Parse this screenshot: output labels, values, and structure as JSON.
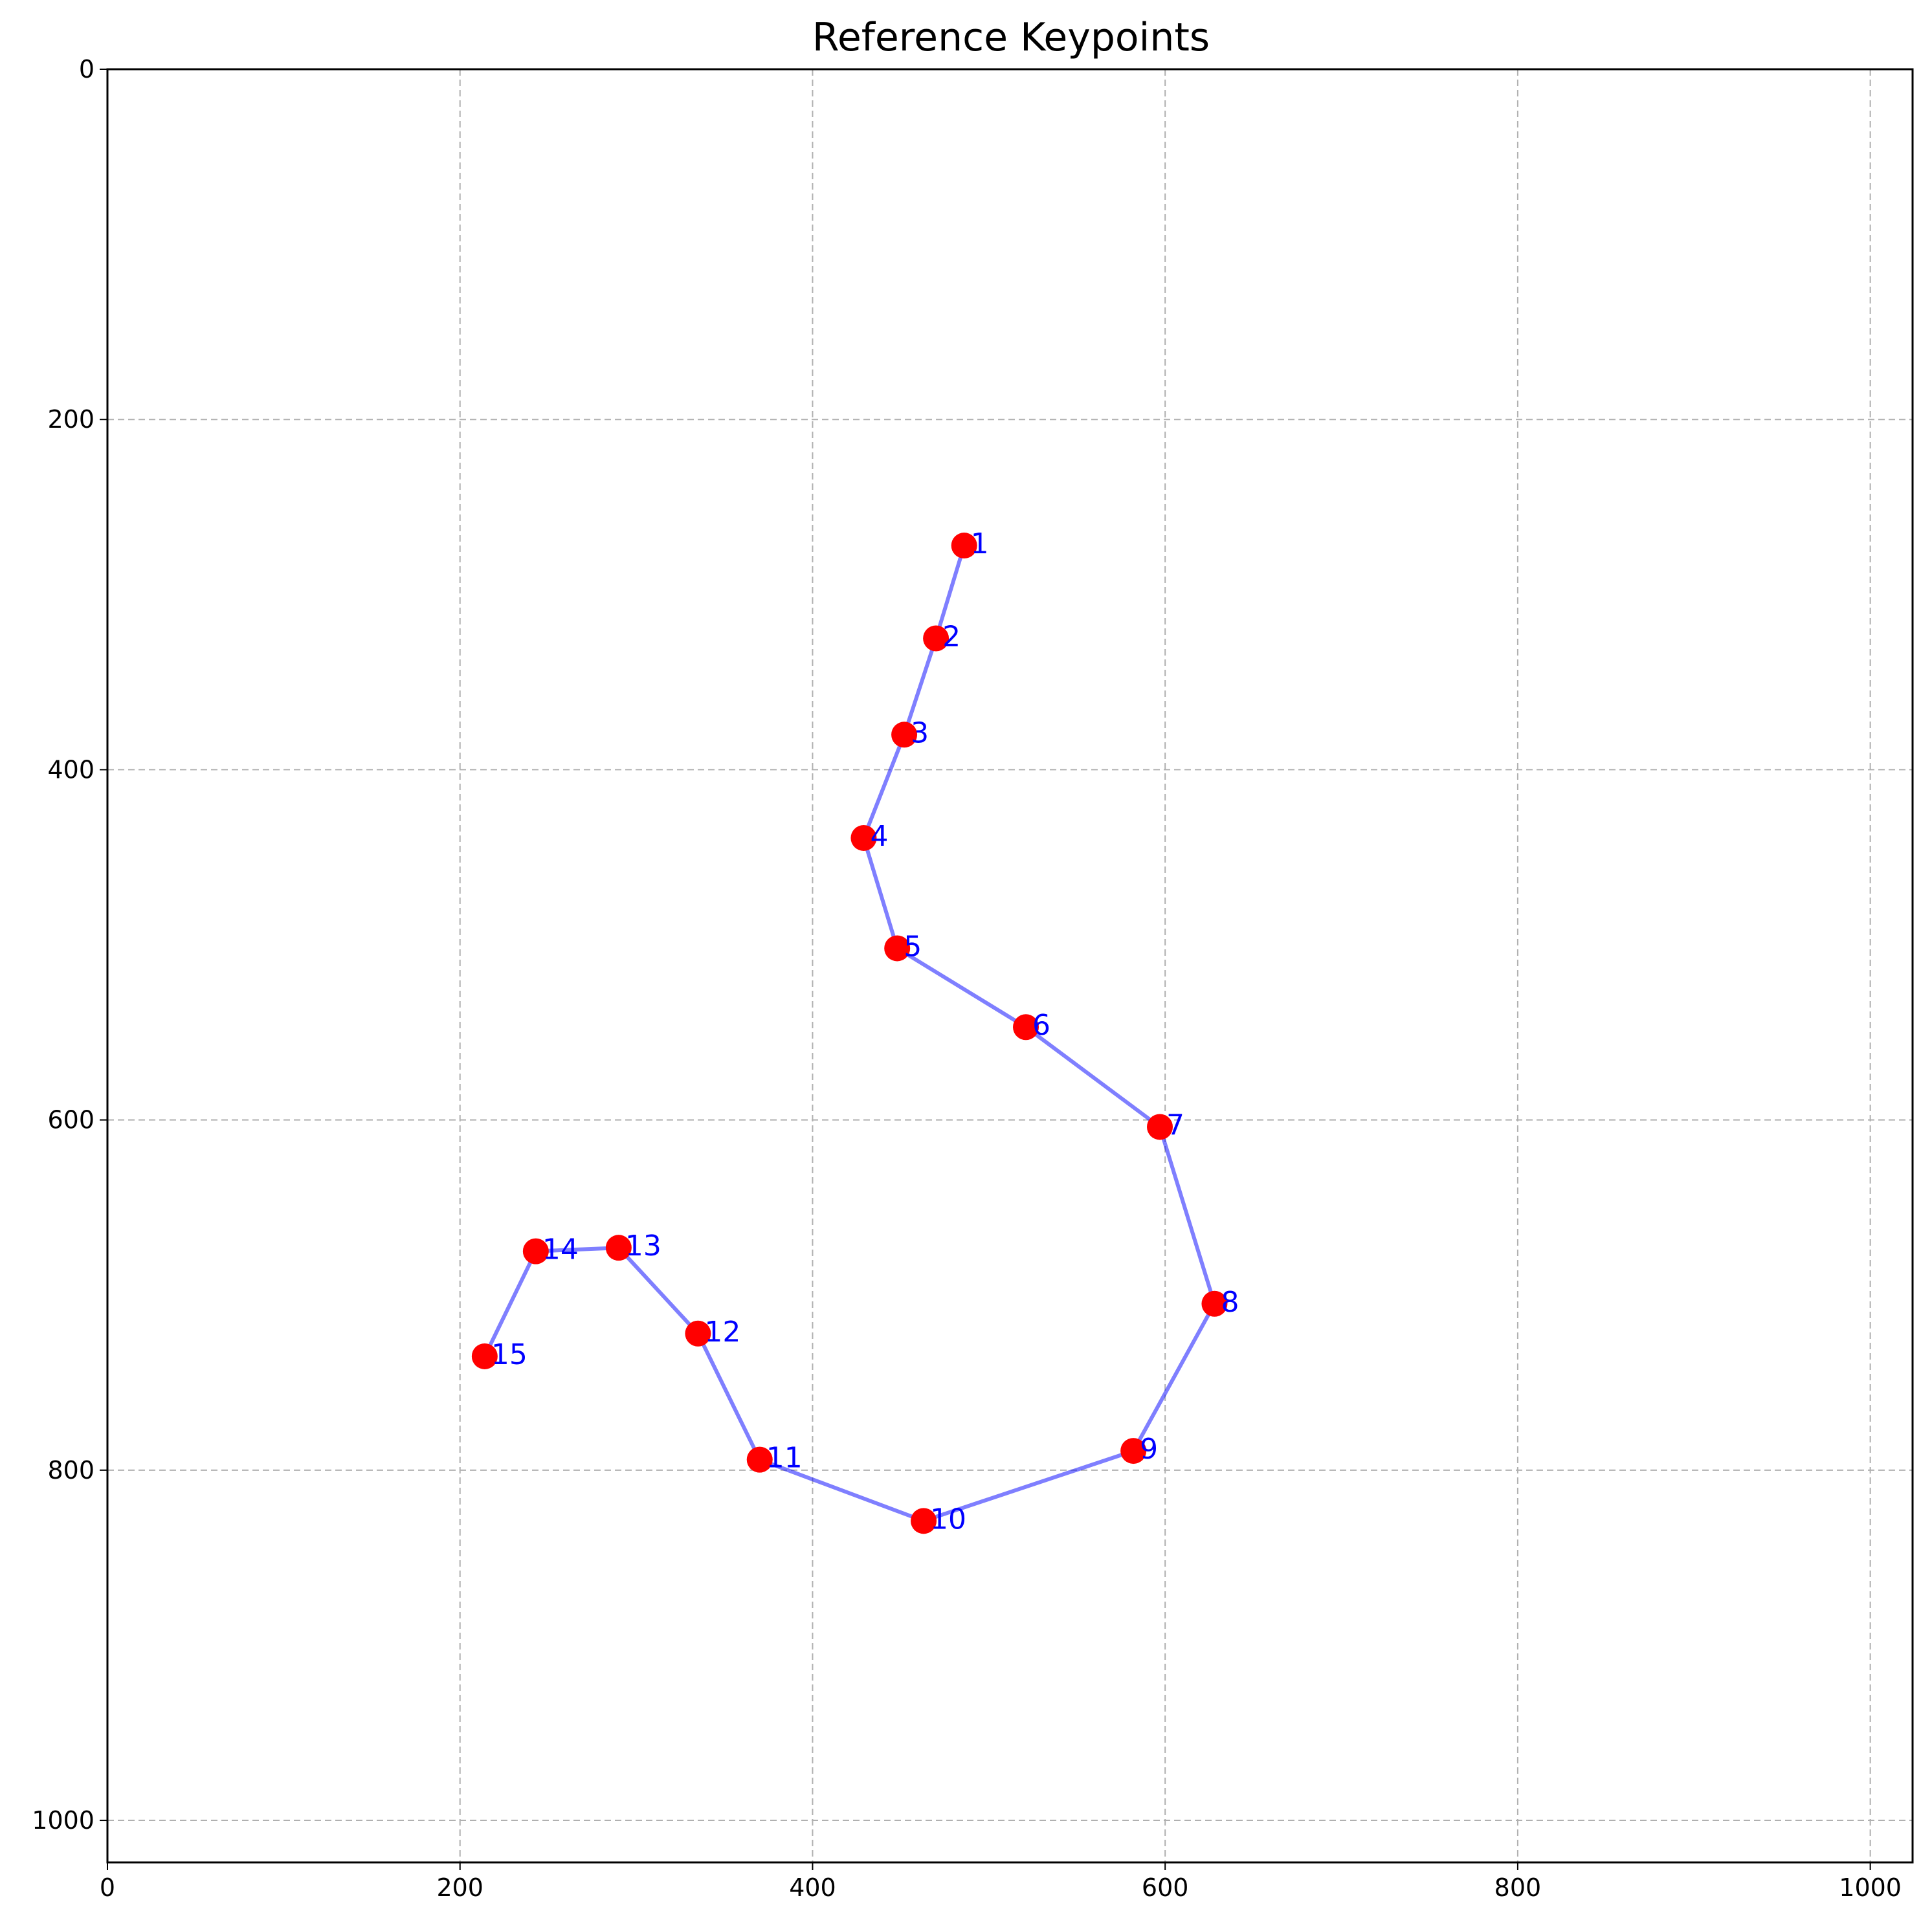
{
  "chart_data": {
    "type": "line",
    "title": "Reference Keypoints",
    "xlabel": "",
    "ylabel": "",
    "xlim": [
      0,
      1024
    ],
    "ylim": [
      1024,
      0
    ],
    "y_inverted": true,
    "grid": true,
    "x_ticks": [
      0,
      200,
      400,
      600,
      800,
      1000
    ],
    "y_ticks": [
      0,
      200,
      400,
      600,
      800,
      1000
    ],
    "x_tick_labels": [
      "0",
      "200",
      "400",
      "600",
      "800",
      "1000"
    ],
    "y_tick_labels": [
      "0",
      "200",
      "400",
      "600",
      "800",
      "1000"
    ],
    "series": [
      {
        "marker_color": "#ff0000",
        "line_color": "#0000ff",
        "label_color": "#0000ff",
        "points": [
          {
            "label": "1",
            "x": 486,
            "y": 272
          },
          {
            "label": "2",
            "x": 470,
            "y": 325
          },
          {
            "label": "3",
            "x": 452,
            "y": 380
          },
          {
            "label": "4",
            "x": 429,
            "y": 439
          },
          {
            "label": "5",
            "x": 448,
            "y": 502
          },
          {
            "label": "6",
            "x": 521,
            "y": 547
          },
          {
            "label": "7",
            "x": 597,
            "y": 604
          },
          {
            "label": "8",
            "x": 628,
            "y": 705
          },
          {
            "label": "9",
            "x": 582,
            "y": 789
          },
          {
            "label": "10",
            "x": 463,
            "y": 829
          },
          {
            "label": "11",
            "x": 370,
            "y": 794
          },
          {
            "label": "12",
            "x": 335,
            "y": 722
          },
          {
            "label": "13",
            "x": 290,
            "y": 673
          },
          {
            "label": "14",
            "x": 243,
            "y": 675
          },
          {
            "label": "15",
            "x": 214,
            "y": 735
          }
        ]
      }
    ]
  }
}
